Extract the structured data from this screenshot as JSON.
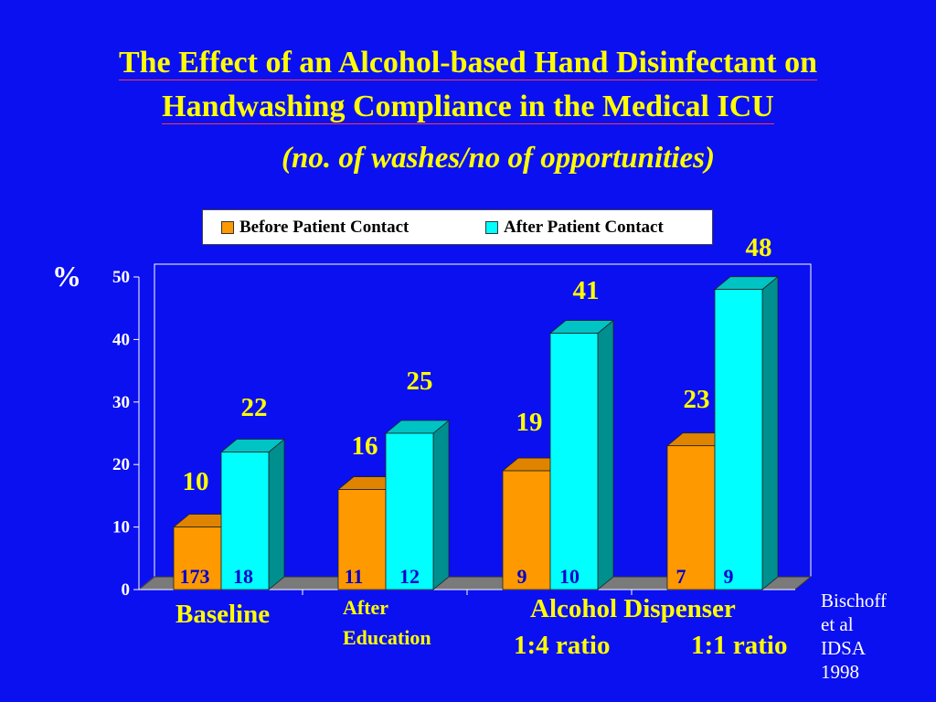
{
  "slide": {
    "title_line1": "The Effect of an Alcohol-based Hand Disinfectant on",
    "title_line2": "Handwashing Compliance in the Medical ICU",
    "subtitle": "(no. of washes/no of opportunities)",
    "y_unit": "%",
    "citation": [
      "Bischoff",
      "et al",
      "IDSA",
      "1998"
    ],
    "category_labels": {
      "baseline": "Baseline",
      "after_education_1": "After",
      "after_education_2": "Education",
      "alcohol_dispenser": "Alcohol Dispenser",
      "ratio_1_4": "1:4 ratio",
      "ratio_1_1": "1:1 ratio"
    }
  },
  "colors": {
    "background": "#0b10f0",
    "title": "#ffff00",
    "before": "#ff9900",
    "after": "#00ffff",
    "floor": "#7a7a7a",
    "inner_label": "#0000cc"
  },
  "chart_data": {
    "type": "bar",
    "categories": [
      "Baseline",
      "After Education",
      "Alcohol Dispenser 1:4 ratio",
      "Alcohol Dispenser 1:1 ratio"
    ],
    "series": [
      {
        "name": "Before Patient Contact",
        "values": [
          10,
          16,
          19,
          23
        ],
        "opportunities": [
          "173",
          "11",
          "9",
          "7"
        ]
      },
      {
        "name": "After Patient Contact",
        "values": [
          22,
          25,
          41,
          48
        ],
        "opportunities": [
          "18",
          "12",
          "10",
          "9"
        ]
      }
    ],
    "ylim": [
      0,
      50
    ],
    "yticks": [
      0,
      10,
      20,
      30,
      40,
      50
    ],
    "legend_position": "top",
    "grid": false
  }
}
